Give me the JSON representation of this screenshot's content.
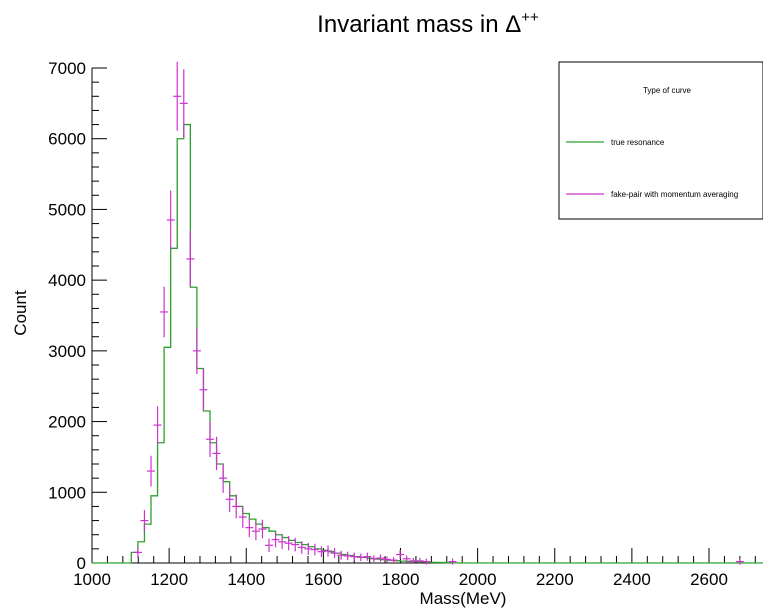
{
  "chart_data": {
    "type": "histogram",
    "title_main": "Invariant mass in Δ",
    "title_sup": "++",
    "xlabel": "Mass(MeV)",
    "ylabel": "Count",
    "xlim": [
      1000,
      2740
    ],
    "ylim": [
      0,
      7000
    ],
    "x_ticks": [
      1000,
      1200,
      1400,
      1600,
      1800,
      2000,
      2200,
      2400,
      2600
    ],
    "x_tick_labels": [
      "1000",
      "1200",
      "1400",
      "1600",
      "1800",
      "2000",
      "2200",
      "2400",
      "2600"
    ],
    "y_ticks": [
      0,
      1000,
      2000,
      3000,
      4000,
      5000,
      6000,
      7000
    ],
    "y_tick_labels": [
      "0",
      "1000",
      "2000",
      "3000",
      "4000",
      "5000",
      "6000",
      "7000"
    ],
    "grid": false,
    "legend_placement": "top-right",
    "legend": {
      "header": "Type of curve",
      "entries": [
        "true resonance",
        "fake-pair with momentum averaging"
      ]
    },
    "series": [
      {
        "name": "true resonance",
        "kind": "step",
        "color": "#2ca02c",
        "bin_width": 17,
        "x": [
          1000,
          1017,
          1034,
          1051,
          1068,
          1085,
          1102,
          1119,
          1136,
          1153,
          1170,
          1187,
          1204,
          1221,
          1238,
          1255,
          1272,
          1289,
          1306,
          1323,
          1340,
          1357,
          1374,
          1391,
          1408,
          1425,
          1442,
          1459,
          1476,
          1493,
          1510,
          1527,
          1544,
          1561,
          1578,
          1595,
          1612,
          1629,
          1646,
          1663,
          1680,
          1697,
          1714,
          1731,
          1748,
          1765,
          1782,
          1799,
          1816,
          1833,
          1850,
          1867,
          1884,
          1901,
          1918,
          1935
        ],
        "y": [
          0,
          0,
          0,
          0,
          0,
          0,
          150,
          300,
          550,
          950,
          1700,
          3050,
          4450,
          6000,
          6200,
          3900,
          2750,
          2150,
          1700,
          1400,
          1150,
          950,
          800,
          700,
          620,
          550,
          500,
          450,
          400,
          360,
          320,
          290,
          260,
          230,
          200,
          180,
          160,
          140,
          120,
          105,
          90,
          78,
          66,
          56,
          47,
          40,
          33,
          27,
          22,
          18,
          14,
          11,
          8,
          6,
          4,
          2
        ]
      },
      {
        "name": "fake-pair with momentum averaging",
        "kind": "error-cross",
        "color": "#cc33cc",
        "x": [
          1119,
          1136,
          1153,
          1170,
          1187,
          1204,
          1221,
          1238,
          1255,
          1272,
          1289,
          1306,
          1323,
          1340,
          1357,
          1374,
          1391,
          1408,
          1425,
          1442,
          1459,
          1476,
          1493,
          1510,
          1527,
          1544,
          1561,
          1578,
          1595,
          1612,
          1629,
          1646,
          1663,
          1680,
          1697,
          1714,
          1731,
          1748,
          1765,
          1782,
          1799,
          1816,
          1833,
          1850,
          1867,
          1935,
          2680
        ],
        "y": [
          150,
          600,
          1300,
          1950,
          3550,
          4850,
          6600,
          6500,
          4300,
          3000,
          2450,
          1750,
          1550,
          1200,
          900,
          800,
          650,
          500,
          450,
          480,
          250,
          330,
          300,
          280,
          260,
          220,
          200,
          190,
          160,
          170,
          140,
          110,
          100,
          90,
          80,
          90,
          60,
          70,
          50,
          40,
          120,
          60,
          30,
          30,
          20,
          20,
          20
        ]
      }
    ]
  }
}
